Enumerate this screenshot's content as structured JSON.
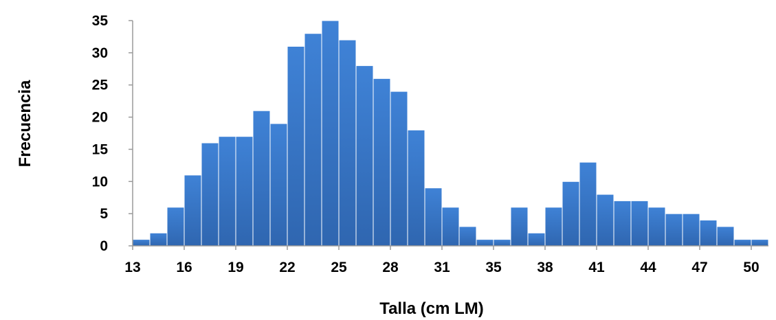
{
  "chart_data": {
    "type": "bar",
    "title": "",
    "xlabel": "Talla (cm LM)",
    "ylabel": "Frecuencia",
    "ylim": [
      0,
      35
    ],
    "yticks": [
      "0",
      "5",
      "10",
      "15",
      "20",
      "25",
      "30",
      "35"
    ],
    "xtick_labels": [
      "13",
      "16",
      "19",
      "22",
      "25",
      "28",
      "31",
      "35",
      "38",
      "41",
      "44",
      "47",
      "50"
    ],
    "values": [
      1,
      2,
      6,
      11,
      16,
      17,
      17,
      21,
      19,
      31,
      33,
      35,
      32,
      28,
      26,
      24,
      18,
      9,
      6,
      3,
      1,
      1,
      6,
      2,
      6,
      10,
      13,
      8,
      7,
      7,
      6,
      5,
      5,
      4,
      3,
      1,
      1
    ],
    "bar_color": "#3a78cc",
    "grid": false
  }
}
